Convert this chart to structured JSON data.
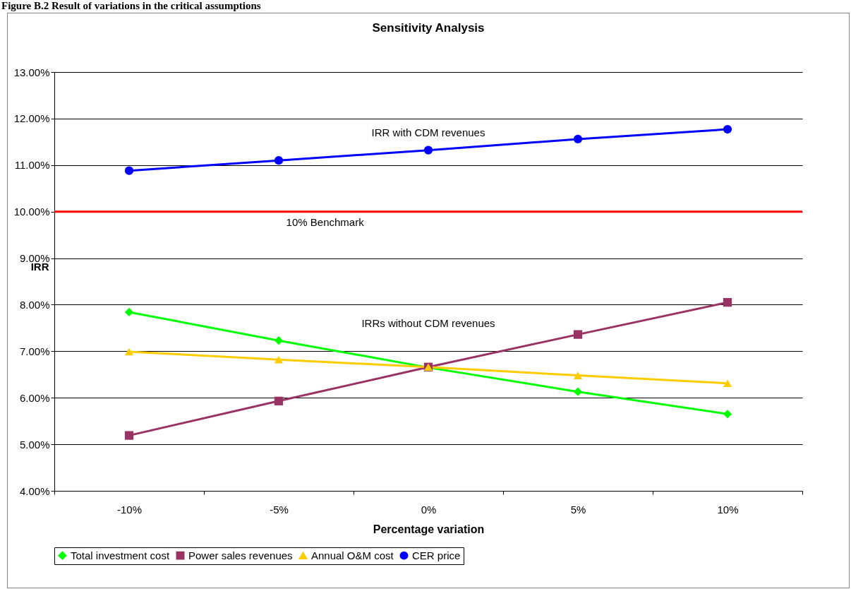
{
  "chart_data": {
    "type": "line",
    "title": "Sensitivity Analysis",
    "xlabel": "Percentage variation",
    "ylabel": "IRR",
    "categories": [
      "-10%",
      "-5%",
      "0%",
      "5%",
      "10%"
    ],
    "series": [
      {
        "name": "Total investment cost",
        "color": "#00ff00",
        "marker": "diamond",
        "values": [
          7.84,
          7.23,
          6.65,
          6.13,
          5.65
        ]
      },
      {
        "name": "Power sales revenues",
        "color": "#993366",
        "marker": "square",
        "values": [
          5.19,
          5.93,
          6.66,
          7.36,
          8.05
        ]
      },
      {
        "name": "Annual O&M cost",
        "color": "#ffcc00",
        "marker": "triangle",
        "values": [
          6.99,
          6.82,
          6.66,
          6.48,
          6.31
        ]
      },
      {
        "name": "CER price",
        "color": "#0000ff",
        "marker": "circle",
        "values": [
          10.88,
          11.1,
          11.32,
          11.56,
          11.77
        ]
      }
    ],
    "ylim": [
      4,
      13
    ],
    "yticks": [
      {
        "value": 4,
        "label": "4.00%"
      },
      {
        "value": 5,
        "label": "5.00%"
      },
      {
        "value": 6,
        "label": "6.00%"
      },
      {
        "value": 7,
        "label": "7.00%"
      },
      {
        "value": 8,
        "label": "8.00%"
      },
      {
        "value": 9,
        "label": "9.00%"
      },
      {
        "value": 10,
        "label": "10.00%"
      },
      {
        "value": 11,
        "label": "11.00%"
      },
      {
        "value": 12,
        "label": "12.00%"
      },
      {
        "value": 13,
        "label": "13.00%"
      }
    ],
    "ref_lines": [
      {
        "axis": "y",
        "value": 10,
        "label": "10% Benchmark",
        "color": "#ff0000"
      }
    ],
    "annotations": [
      "Figure B.2 Result of variations in the critical assumptions",
      "IRR with CDM revenues",
      "IRRs without CDM revenues"
    ],
    "grid": "y",
    "legend": "bottom"
  }
}
